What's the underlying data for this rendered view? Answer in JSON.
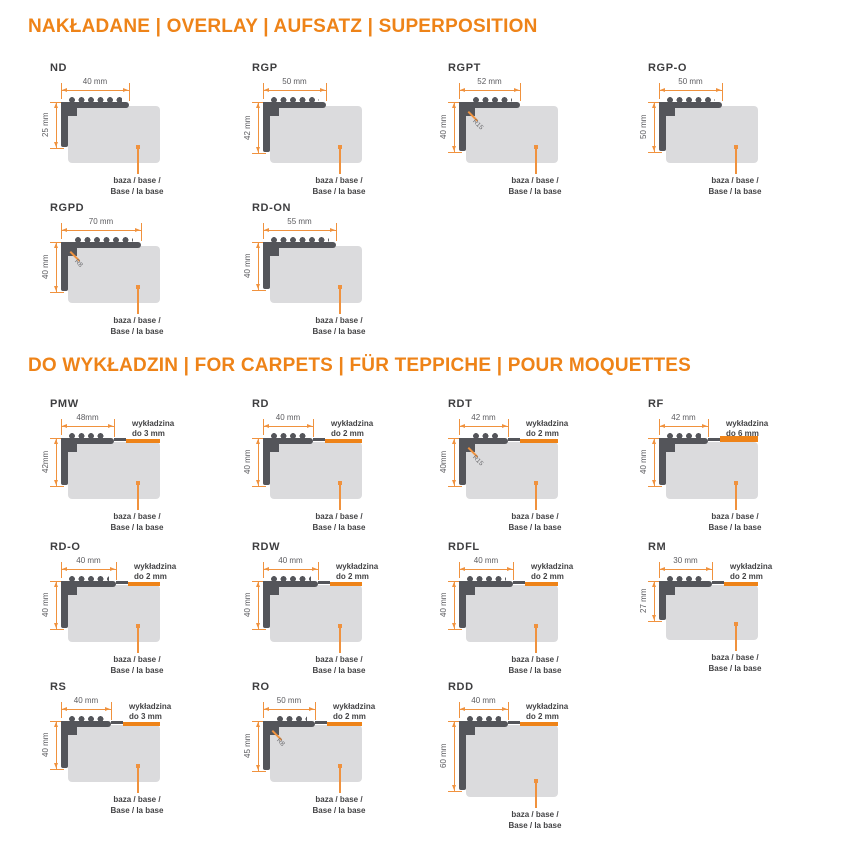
{
  "colors": {
    "accent_orange": "#EE8318",
    "line_orange": "#F0923E",
    "profile_dark": "#54555A",
    "base_gray": "#DBDBDD",
    "title_dark": "#3E3E40"
  },
  "sections": [
    {
      "title": "NAKŁADANE | OVERLAY | AUFSATZ | SUPERPOSITION",
      "profiles": [
        {
          "name": "ND",
          "width_label": "40 mm",
          "height_label": "25 mm",
          "base_label_line1": "baza / base /",
          "base_label_line2": "Base / la base"
        },
        {
          "name": "RGP",
          "width_label": "50 mm",
          "height_label": "42 mm",
          "base_label_line1": "baza / base /",
          "base_label_line2": "Base / la base"
        },
        {
          "name": "RGPT",
          "width_label": "52 mm",
          "height_label": "40 mm",
          "radius_label": "R15",
          "base_label_line1": "baza / base /",
          "base_label_line2": "Base / la base"
        },
        {
          "name": "RGP-O",
          "width_label": "50 mm",
          "height_label": "50 mm",
          "base_label_line1": "baza / base /",
          "base_label_line2": "Base / la base"
        },
        {
          "name": "RGPD",
          "width_label": "70 mm",
          "height_label": "40 mm",
          "radius_label": "R8",
          "base_label_line1": "baza / base /",
          "base_label_line2": "Base / la base"
        },
        {
          "name": "RD-ON",
          "width_label": "55 mm",
          "height_label": "40 mm",
          "base_label_line1": "baza / base /",
          "base_label_line2": "Base / la base"
        }
      ]
    },
    {
      "title": "DO WYKŁADZIN | FOR CARPETS | FÜR TEPPICHE | POUR MOQUETTES",
      "profiles": [
        {
          "name": "PMW",
          "width_label": "48mm",
          "height_label": "42mm",
          "carpet_label_line1": "wykładzina",
          "carpet_label_line2": "do 3 mm",
          "base_label_line1": "baza / base /",
          "base_label_line2": "Base / la base"
        },
        {
          "name": "RD",
          "width_label": "40 mm",
          "height_label": "40 mm",
          "carpet_label_line1": "wykładzina",
          "carpet_label_line2": "do 2 mm",
          "base_label_line1": "baza / base /",
          "base_label_line2": "Base / la base"
        },
        {
          "name": "RDT",
          "width_label": "42 mm",
          "height_label": "40mm",
          "radius_label": "R15",
          "carpet_label_line1": "wykładzina",
          "carpet_label_line2": "do 2 mm",
          "base_label_line1": "baza / base /",
          "base_label_line2": "Base / la base"
        },
        {
          "name": "RF",
          "width_label": "42 mm",
          "height_label": "40 mm",
          "carpet_label_line1": "wykładzina",
          "carpet_label_line2": "do 6 mm",
          "base_label_line1": "baza / base /",
          "base_label_line2": "Base / la base"
        },
        {
          "name": "RD-O",
          "width_label": "40 mm",
          "height_label": "40 mm",
          "carpet_label_line1": "wykładzina",
          "carpet_label_line2": "do 2 mm",
          "base_label_line1": "baza / base /",
          "base_label_line2": "Base / la base"
        },
        {
          "name": "RDW",
          "width_label": "40 mm",
          "height_label": "40 mm",
          "carpet_label_line1": "wykładzina",
          "carpet_label_line2": "do 2 mm",
          "base_label_line1": "baza / base /",
          "base_label_line2": "Base / la base"
        },
        {
          "name": "RDFL",
          "width_label": "40 mm",
          "height_label": "40 mm",
          "carpet_label_line1": "wykładzina",
          "carpet_label_line2": "do 2 mm",
          "base_label_line1": "baza / base /",
          "base_label_line2": "Base / la base"
        },
        {
          "name": "RM",
          "width_label": "30 mm",
          "height_label": "27 mm",
          "carpet_label_line1": "wykładzina",
          "carpet_label_line2": "do 2 mm",
          "base_label_line1": "baza / base /",
          "base_label_line2": "Base / la base"
        },
        {
          "name": "RS",
          "width_label": "40 mm",
          "height_label": "40 mm",
          "carpet_label_line1": "wykładzina",
          "carpet_label_line2": "do 3 mm",
          "base_label_line1": "baza / base /",
          "base_label_line2": "Base / la base"
        },
        {
          "name": "RO",
          "width_label": "50 mm",
          "height_label": "45 mm",
          "radius_label": "R8",
          "carpet_label_line1": "wykładzina",
          "carpet_label_line2": "do 2 mm",
          "base_label_line1": "baza / base /",
          "base_label_line2": "Base / la base"
        },
        {
          "name": "RDD",
          "width_label": "40 mm",
          "height_label": "60 mm",
          "carpet_label_line1": "wykładzina",
          "carpet_label_line2": "do 2 mm",
          "base_label_line1": "baza / base /",
          "base_label_line2": "Base / la base"
        }
      ]
    }
  ]
}
